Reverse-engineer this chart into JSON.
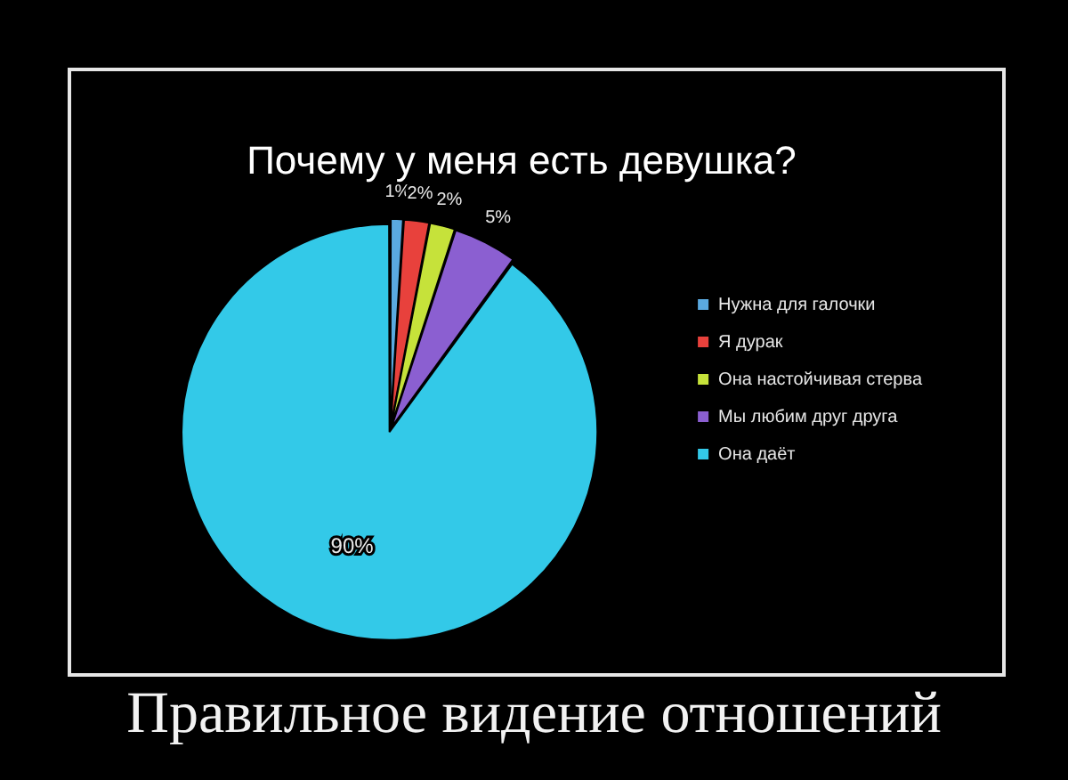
{
  "chart_data": {
    "type": "pie",
    "title": "Почему у меня есть девушка?",
    "categories": [
      "Нужна для галочки",
      "Я дурак",
      "Она настойчивая стерва",
      "Мы любим друг друга",
      "Она даёт"
    ],
    "values": [
      1,
      2,
      2,
      5,
      90
    ],
    "colors": [
      "#5aa9e0",
      "#e8413c",
      "#c6e23a",
      "#8b5fd1",
      "#33c9e8"
    ],
    "value_labels": [
      "1%",
      "2%",
      "2%",
      "5%",
      "90%"
    ],
    "legend": "right",
    "annotations": [
      "Правильное видение отношений"
    ]
  }
}
